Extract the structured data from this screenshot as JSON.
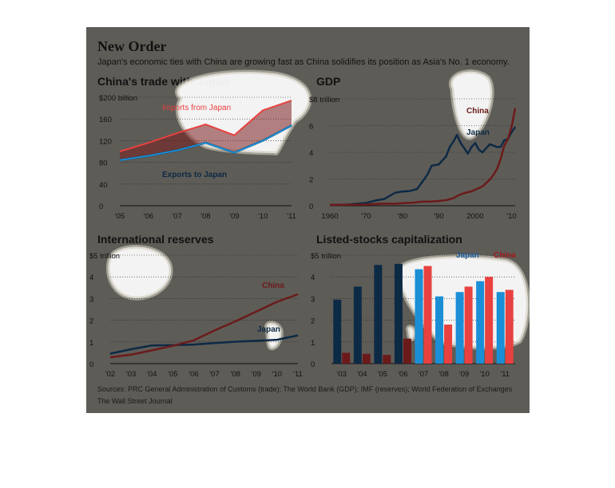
{
  "header": {
    "title": "New Order",
    "subtitle": "Japan's economic ties with China are growing fast as China solidifies its position as Asia's No. 1 economy."
  },
  "footer": {
    "source": "Sources: PRC General Administration of Customs (trade); The World Bank (GDP); IMF (reserves); World Federation of Exchanges",
    "credit": "The Wall Street Journal"
  },
  "colors": {
    "background": "#5e5c57",
    "china_dark": "#6b1a1a",
    "japan_dark": "#0d2a45",
    "imports_red": "#e8413f",
    "exports_blue": "#1a8fd6",
    "highlight": "#ffffff"
  },
  "chart_data": [
    {
      "id": "trade",
      "type": "line",
      "title": "China's trade with Japan",
      "ytick_labels": [
        "0",
        "40",
        "80",
        "120",
        "160",
        "$200 billion"
      ],
      "yticks": [
        0,
        40,
        80,
        120,
        160,
        200
      ],
      "ylim": [
        0,
        200
      ],
      "x": [
        2005,
        2006,
        2007,
        2008,
        2009,
        2010,
        2011
      ],
      "xtick_labels": [
        "'05",
        "'06",
        "'07",
        "'08",
        "'09",
        "'10",
        "'11"
      ],
      "series": [
        {
          "name": "Imports from Japan",
          "color": "#e8413f",
          "values": [
            100,
            116,
            134,
            150,
            130,
            176,
            194
          ]
        },
        {
          "name": "Exports to Japan",
          "color": "#1a8fd6",
          "values": [
            84,
            92,
            102,
            116,
            98,
            120,
            148
          ]
        }
      ]
    },
    {
      "id": "gdp",
      "type": "line",
      "title": "GDP",
      "ytick_labels": [
        "0",
        "2",
        "4",
        "6",
        "$8 trillion"
      ],
      "yticks": [
        0,
        2,
        4,
        6,
        8
      ],
      "ylim": [
        0,
        8
      ],
      "xlim": [
        1960,
        2011
      ],
      "xtick_values": [
        1960,
        1970,
        1980,
        1990,
        2000,
        2010
      ],
      "xtick_labels": [
        "1960",
        "'70",
        "'80",
        "'90",
        "2000",
        "'10"
      ],
      "series": [
        {
          "name": "China",
          "color": "#6b1a1a",
          "x": [
            1960,
            1965,
            1970,
            1975,
            1978,
            1980,
            1983,
            1985,
            1988,
            1990,
            1992,
            1994,
            1995,
            1997,
            1999,
            2000,
            2002,
            2004,
            2005,
            2006,
            2007,
            2008,
            2009,
            2010,
            2011
          ],
          "values": [
            0.06,
            0.07,
            0.09,
            0.16,
            0.15,
            0.19,
            0.23,
            0.3,
            0.31,
            0.36,
            0.42,
            0.56,
            0.73,
            0.95,
            1.08,
            1.2,
            1.45,
            1.95,
            2.3,
            2.75,
            3.5,
            4.5,
            5.0,
            5.9,
            7.3
          ]
        },
        {
          "name": "Japan",
          "color": "#0d2a45",
          "x": [
            1960,
            1965,
            1970,
            1973,
            1975,
            1978,
            1980,
            1982,
            1984,
            1986,
            1987,
            1988,
            1990,
            1992,
            1993,
            1994,
            1995,
            1996,
            1998,
            1999,
            2000,
            2001,
            2002,
            2003,
            2004,
            2005,
            2006,
            2007,
            2008,
            2009,
            2010,
            2011
          ],
          "values": [
            0.04,
            0.09,
            0.21,
            0.42,
            0.5,
            0.98,
            1.07,
            1.1,
            1.25,
            2.0,
            2.4,
            3.0,
            3.1,
            3.7,
            4.4,
            4.8,
            5.3,
            4.7,
            3.9,
            4.4,
            4.7,
            4.2,
            4.0,
            4.3,
            4.6,
            4.5,
            4.4,
            4.4,
            4.9,
            5.0,
            5.5,
            5.9
          ]
        }
      ]
    },
    {
      "id": "reserves",
      "type": "line",
      "title": "International reserves",
      "ytick_labels": [
        "0",
        "1",
        "2",
        "3",
        "4",
        "$5 trillion"
      ],
      "yticks": [
        0,
        1,
        2,
        3,
        4,
        5
      ],
      "ylim": [
        0,
        5
      ],
      "x": [
        2002,
        2003,
        2004,
        2005,
        2006,
        2007,
        2008,
        2009,
        2010,
        2011
      ],
      "xtick_labels": [
        "'02",
        "'03",
        "'04",
        "'05",
        "'06",
        "'07",
        "'08",
        "'09",
        "'10",
        "'11"
      ],
      "series": [
        {
          "name": "China",
          "color": "#6b1a1a",
          "values": [
            0.29,
            0.41,
            0.61,
            0.82,
            1.07,
            1.53,
            1.95,
            2.4,
            2.85,
            3.2
          ]
        },
        {
          "name": "Japan",
          "color": "#0d2a45",
          "values": [
            0.46,
            0.66,
            0.84,
            0.85,
            0.88,
            0.95,
            1.01,
            1.05,
            1.1,
            1.3
          ]
        }
      ]
    },
    {
      "id": "stocks",
      "type": "bar",
      "title": "Listed-stocks capitalization",
      "ytick_labels": [
        "0",
        "1",
        "2",
        "3",
        "4",
        "$5 trillion"
      ],
      "yticks": [
        0,
        1,
        2,
        3,
        4,
        5
      ],
      "ylim": [
        0,
        5
      ],
      "categories": [
        "'03",
        "'04",
        "'05",
        "'06",
        "'07",
        "'08",
        "'09",
        "'10",
        "'11"
      ],
      "series": [
        {
          "name": "Japan",
          "color": "#1a8fd6",
          "values": [
            2.95,
            3.55,
            4.55,
            4.6,
            4.35,
            3.1,
            3.3,
            3.8,
            3.3
          ]
        },
        {
          "name": "China",
          "color": "#e8413f",
          "values": [
            0.5,
            0.45,
            0.4,
            1.15,
            4.5,
            1.8,
            3.55,
            4.0,
            3.4
          ]
        }
      ]
    }
  ]
}
